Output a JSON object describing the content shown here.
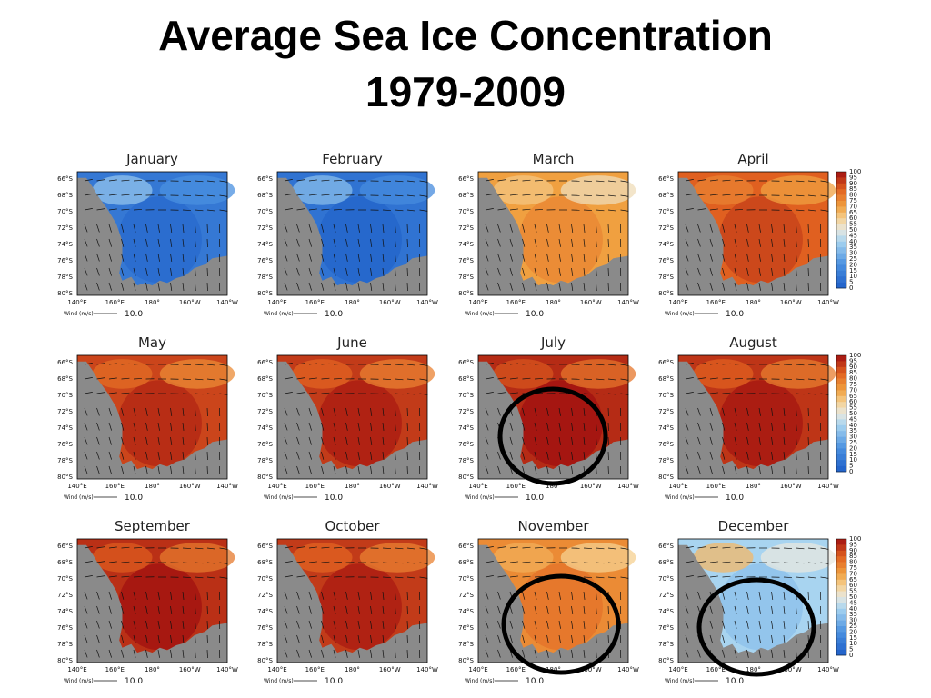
{
  "title_line1": "Average Sea Ice Concentration",
  "title_line2": "1979-2009",
  "chart_data": {
    "type": "heatmap",
    "title": "Average Sea Ice Concentration 1979-2009",
    "panels": [
      {
        "month": "January",
        "level": 10,
        "highlighted": false
      },
      {
        "month": "February",
        "level": 8,
        "highlighted": false
      },
      {
        "month": "March",
        "level": 70,
        "highlighted": false
      },
      {
        "month": "April",
        "level": 85,
        "highlighted": false
      },
      {
        "month": "May",
        "level": 90,
        "highlighted": false
      },
      {
        "month": "June",
        "level": 92,
        "highlighted": false
      },
      {
        "month": "July",
        "level": 95,
        "highlighted": true
      },
      {
        "month": "August",
        "level": 93,
        "highlighted": false
      },
      {
        "month": "September",
        "level": 94,
        "highlighted": false
      },
      {
        "month": "October",
        "level": 92,
        "highlighted": false
      },
      {
        "month": "November",
        "level": 75,
        "highlighted": true
      },
      {
        "month": "December",
        "level": 40,
        "highlighted": true
      }
    ],
    "x_ticks": [
      "140°E",
      "160°E",
      "180°",
      "160°W",
      "140°W"
    ],
    "y_ticks": [
      "66°S",
      "68°S",
      "70°S",
      "72°S",
      "74°S",
      "76°S",
      "78°S",
      "80°S"
    ],
    "colorbar_ticks": [
      "100",
      "95",
      "90",
      "85",
      "80",
      "75",
      "70",
      "65",
      "60",
      "55",
      "50",
      "45",
      "40",
      "35",
      "30",
      "25",
      "20",
      "15",
      "10",
      "5",
      "0"
    ],
    "colorbar_range": [
      0,
      100
    ],
    "colors": {
      "0": "#1f5fc8",
      "20": "#4a90e0",
      "40": "#a8d4f0",
      "50": "#e8e8e0",
      "60": "#f5d090",
      "70": "#f0a040",
      "85": "#e06020",
      "100": "#a01010"
    },
    "land_color": "#8a8a8a",
    "wind_label": "Wind (m/s)",
    "wind_value": "10.0"
  }
}
